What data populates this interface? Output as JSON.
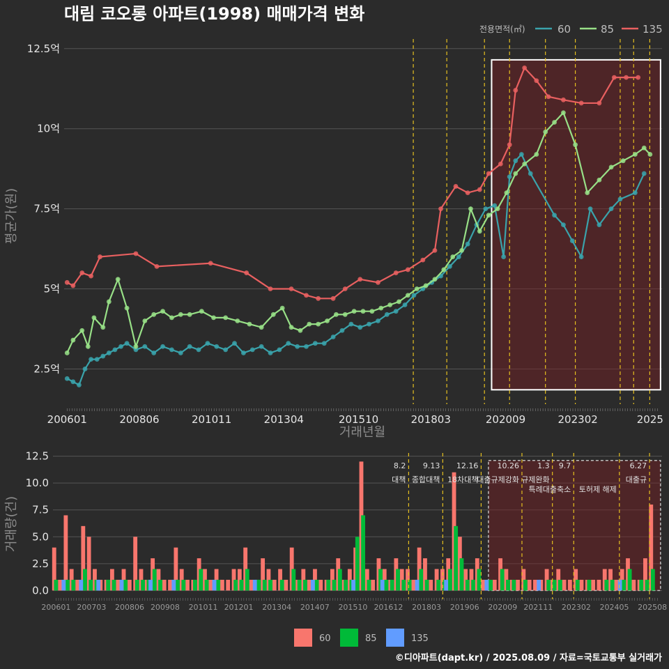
{
  "title": "대림 코오롱 아파트(1998) 매매가격 변화",
  "caption": "©디아파트(dapt.kr) / 2025.08.09 / 자료=국토교통부 실거래가",
  "legend_top": {
    "title": "전용면적(㎡)",
    "items": [
      "60",
      "85",
      "135"
    ]
  },
  "legend_bottom": {
    "items": [
      "60",
      "85",
      "135"
    ]
  },
  "colors": {
    "s60": "#3aa3ab",
    "s85": "#98e087",
    "s135": "#e96060",
    "bar60": "#f8766d",
    "bar85": "#00ba38",
    "bar135": "#619cff",
    "policy": "#e6c020",
    "highlight": "#7a1f24"
  },
  "chart_data": [
    {
      "type": "line",
      "ylabel": "평균가(원)",
      "xlabel": "거래년월",
      "y_ticks": [
        "2.5억",
        "5억",
        "7.5억",
        "10억",
        "12.5억"
      ],
      "y_tick_values": [
        2.5,
        5,
        7.5,
        10,
        12.5
      ],
      "ylim": [
        1.4,
        12.8
      ],
      "x_ticks": [
        "200601",
        "200806",
        "201011",
        "201304",
        "201510",
        "201803",
        "202009",
        "202302",
        "2025"
      ],
      "x_tick_dates": [
        2006.0,
        2008.417,
        2010.833,
        2013.25,
        2015.75,
        2018.167,
        2020.667,
        2023.083,
        2025.5
      ],
      "xlim": [
        2005.9,
        2025.9
      ],
      "policy_lines": [
        2017.58,
        2018.7,
        2019.96,
        2020.8,
        2022.0,
        2023.0,
        2024.5,
        2024.95,
        2025.49
      ],
      "highlight": {
        "x_from": 2020.2,
        "x_to": 2025.85,
        "y_from": 1.85,
        "y_to": 12.15
      },
      "series": [
        {
          "name": "60",
          "x": [
            2006.0,
            2006.2,
            2006.4,
            2006.6,
            2006.8,
            2007.0,
            2007.2,
            2007.4,
            2007.6,
            2007.8,
            2008.0,
            2008.3,
            2008.6,
            2008.9,
            2009.2,
            2009.5,
            2009.8,
            2010.1,
            2010.4,
            2010.7,
            2011.0,
            2011.3,
            2011.6,
            2011.9,
            2012.2,
            2012.5,
            2012.8,
            2013.1,
            2013.4,
            2013.7,
            2014.0,
            2014.3,
            2014.6,
            2014.9,
            2015.2,
            2015.5,
            2015.8,
            2016.1,
            2016.4,
            2016.7,
            2017.0,
            2017.3,
            2017.6,
            2017.9,
            2018.2,
            2018.5,
            2018.8,
            2019.1,
            2019.4,
            2019.7,
            2020.0,
            2020.3,
            2020.6,
            2020.8,
            2021.0,
            2021.2,
            2021.5,
            2022.3,
            2022.6,
            2022.9,
            2023.2,
            2023.5,
            2023.8,
            2024.2,
            2024.5,
            2025.0,
            2025.3
          ],
          "values": [
            2.2,
            2.1,
            2.0,
            2.5,
            2.8,
            2.8,
            2.9,
            3.0,
            3.1,
            3.2,
            3.3,
            3.1,
            3.2,
            3.0,
            3.2,
            3.1,
            3.0,
            3.2,
            3.1,
            3.3,
            3.2,
            3.1,
            3.3,
            3.0,
            3.1,
            3.2,
            3.0,
            3.1,
            3.3,
            3.2,
            3.2,
            3.3,
            3.3,
            3.5,
            3.7,
            3.9,
            3.8,
            3.9,
            4.0,
            4.2,
            4.3,
            4.5,
            4.8,
            5.0,
            5.2,
            5.4,
            5.7,
            6.0,
            6.4,
            7.0,
            7.5,
            7.6,
            6.0,
            8.5,
            9.0,
            9.2,
            8.6,
            7.3,
            7.0,
            6.5,
            6.0,
            7.5,
            7.0,
            7.5,
            7.8,
            8.0,
            8.6
          ]
        },
        {
          "name": "85",
          "x": [
            2006.0,
            2006.2,
            2006.5,
            2006.7,
            2006.9,
            2007.2,
            2007.4,
            2007.7,
            2008.0,
            2008.3,
            2008.6,
            2008.9,
            2009.2,
            2009.5,
            2009.8,
            2010.1,
            2010.5,
            2010.9,
            2011.3,
            2011.7,
            2012.1,
            2012.5,
            2012.9,
            2013.2,
            2013.5,
            2013.8,
            2014.1,
            2014.4,
            2014.7,
            2015.0,
            2015.3,
            2015.6,
            2015.9,
            2016.2,
            2016.5,
            2016.8,
            2017.1,
            2017.4,
            2017.7,
            2018.0,
            2018.3,
            2018.6,
            2018.9,
            2019.2,
            2019.5,
            2019.8,
            2020.1,
            2020.4,
            2020.7,
            2021.0,
            2021.3,
            2021.7,
            2022.0,
            2022.3,
            2022.6,
            2023.0,
            2023.4,
            2023.8,
            2024.2,
            2024.6,
            2025.0,
            2025.3,
            2025.5
          ],
          "values": [
            3.0,
            3.4,
            3.7,
            3.2,
            4.1,
            3.8,
            4.6,
            5.3,
            4.4,
            3.2,
            4.0,
            4.2,
            4.3,
            4.1,
            4.2,
            4.2,
            4.3,
            4.1,
            4.1,
            4.0,
            3.9,
            3.8,
            4.2,
            4.4,
            3.8,
            3.7,
            3.9,
            3.9,
            4.0,
            4.2,
            4.2,
            4.3,
            4.3,
            4.3,
            4.4,
            4.5,
            4.6,
            4.8,
            5.0,
            5.1,
            5.3,
            5.6,
            6.0,
            6.2,
            7.5,
            6.8,
            7.3,
            7.5,
            8.0,
            8.6,
            8.9,
            9.2,
            9.9,
            10.2,
            10.5,
            9.5,
            8.0,
            8.4,
            8.8,
            9.0,
            9.2,
            9.4,
            9.2
          ]
        },
        {
          "name": "135",
          "x": [
            2006.0,
            2006.2,
            2006.5,
            2006.8,
            2007.1,
            2008.3,
            2009.0,
            2010.8,
            2012.0,
            2012.8,
            2013.5,
            2014.0,
            2014.4,
            2014.9,
            2015.3,
            2015.8,
            2016.4,
            2017.0,
            2017.4,
            2017.9,
            2018.3,
            2018.5,
            2019.0,
            2019.4,
            2019.8,
            2020.1,
            2020.5,
            2020.8,
            2021.0,
            2021.3,
            2021.7,
            2022.1,
            2022.6,
            2023.2,
            2023.8,
            2024.3,
            2024.7,
            2025.1
          ],
          "values": [
            5.2,
            5.1,
            5.5,
            5.4,
            6.0,
            6.1,
            5.7,
            5.8,
            5.5,
            5.0,
            5.0,
            4.8,
            4.7,
            4.7,
            5.0,
            5.3,
            5.2,
            5.5,
            5.6,
            5.9,
            6.2,
            7.5,
            8.2,
            8.0,
            8.1,
            8.6,
            8.9,
            9.5,
            11.2,
            11.9,
            11.5,
            11.0,
            10.9,
            10.8,
            10.8,
            11.6,
            11.6,
            11.6
          ]
        }
      ]
    },
    {
      "type": "bar",
      "ylabel": "거래량(건)",
      "y_ticks": [
        "0.0",
        "2.5",
        "5.0",
        "7.5",
        "10.0",
        "12.5"
      ],
      "y_tick_values": [
        0,
        2.5,
        5,
        7.5,
        10,
        12.5
      ],
      "ylim": [
        -0.3,
        12.8
      ],
      "x_ticks": [
        "200601",
        "200703",
        "200806",
        "200908",
        "201011",
        "201201",
        "201304",
        "201407",
        "201510",
        "201612",
        "201803",
        "201906",
        "202009",
        "202111",
        "202302",
        "202405",
        "202508"
      ],
      "x_tick_dates": [
        2006.0,
        2007.167,
        2008.417,
        2009.583,
        2010.833,
        2012.0,
        2013.25,
        2014.5,
        2015.75,
        2016.917,
        2018.167,
        2019.417,
        2020.667,
        2021.833,
        2023.083,
        2024.333,
        2025.583
      ],
      "xlim": [
        2005.9,
        2025.9
      ],
      "highlight": {
        "x_from": 2020.2,
        "x_to": 2025.85,
        "y_from": 0,
        "y_to": 12.1
      },
      "annotations": [
        {
          "x": 2017.58,
          "date": "8.2",
          "label": "대책"
        },
        {
          "x": 2018.7,
          "date": "9.13",
          "label": "종합대책"
        },
        {
          "x": 2019.96,
          "date": "12.16",
          "label": "18차대책"
        },
        {
          "x": 2021.3,
          "date": "10.26",
          "label": "대출규제강화"
        },
        {
          "x": 2022.3,
          "date": "1.3",
          "label": "규제완화"
        },
        {
          "x": 2023.0,
          "date": "9.7",
          "label": "특례대출축소"
        },
        {
          "x": 2024.5,
          "date": "",
          "label": "토허제 해제"
        },
        {
          "x": 2025.49,
          "date": "6.27",
          "label": "대출규"
        }
      ],
      "series": [
        {
          "name": "60",
          "values": [
            4,
            1,
            7,
            2,
            1,
            6,
            5,
            2,
            1,
            1,
            2,
            1,
            2,
            1,
            5,
            2,
            1,
            3,
            2,
            1,
            1,
            4,
            2,
            1,
            1,
            3,
            2,
            1,
            2,
            1,
            1,
            2,
            2,
            4,
            1,
            1,
            3,
            2,
            1,
            2,
            1,
            4,
            1,
            2,
            1,
            2,
            1,
            1,
            2,
            3,
            1,
            2,
            4,
            12,
            2,
            1,
            3,
            2,
            1,
            3,
            2,
            2,
            1,
            4,
            3,
            1,
            2,
            2,
            3,
            11,
            5,
            2,
            2,
            3,
            1,
            1,
            1,
            3,
            2,
            1,
            1,
            2,
            1,
            1,
            1,
            2,
            1,
            2,
            1,
            1,
            2,
            1,
            1,
            1,
            1,
            2,
            2,
            1,
            2,
            3,
            1,
            1,
            3,
            8
          ]
        },
        {
          "name": "85",
          "values": [
            1,
            0,
            1,
            1,
            0,
            2,
            1,
            1,
            0,
            1,
            1,
            0,
            1,
            0,
            1,
            1,
            1,
            2,
            1,
            0,
            0,
            1,
            1,
            0,
            1,
            2,
            1,
            0,
            1,
            0,
            0,
            1,
            1,
            2,
            0,
            1,
            1,
            1,
            0,
            1,
            0,
            2,
            1,
            1,
            0,
            1,
            0,
            1,
            1,
            2,
            1,
            1,
            5,
            7,
            1,
            0,
            2,
            1,
            1,
            2,
            1,
            1,
            0,
            2,
            1,
            0,
            1,
            1,
            2,
            6,
            3,
            1,
            1,
            2,
            0,
            1,
            0,
            2,
            1,
            1,
            0,
            1,
            0,
            0,
            0,
            1,
            1,
            1,
            0,
            0,
            1,
            0,
            1,
            0,
            0,
            1,
            1,
            0,
            1,
            2,
            0,
            1,
            1,
            2
          ]
        },
        {
          "name": "135",
          "values": [
            0,
            1,
            0,
            0,
            1,
            0,
            0,
            1,
            0,
            0,
            0,
            1,
            0,
            0,
            0,
            0,
            1,
            0,
            0,
            0,
            1,
            0,
            0,
            0,
            0,
            0,
            0,
            1,
            0,
            0,
            0,
            0,
            0,
            0,
            1,
            0,
            0,
            0,
            0,
            0,
            0,
            0,
            0,
            0,
            1,
            0,
            0,
            0,
            0,
            0,
            0,
            1,
            0,
            0,
            0,
            0,
            1,
            0,
            0,
            0,
            0,
            0,
            1,
            0,
            0,
            0,
            0,
            1,
            0,
            0,
            0,
            0,
            0,
            0,
            1,
            0,
            0,
            0,
            0,
            0,
            0,
            0,
            0,
            1,
            0,
            0,
            0,
            0,
            0,
            0,
            0,
            0,
            0,
            0,
            0,
            0,
            0,
            1,
            0,
            0,
            0,
            0,
            0,
            0
          ]
        }
      ]
    }
  ]
}
